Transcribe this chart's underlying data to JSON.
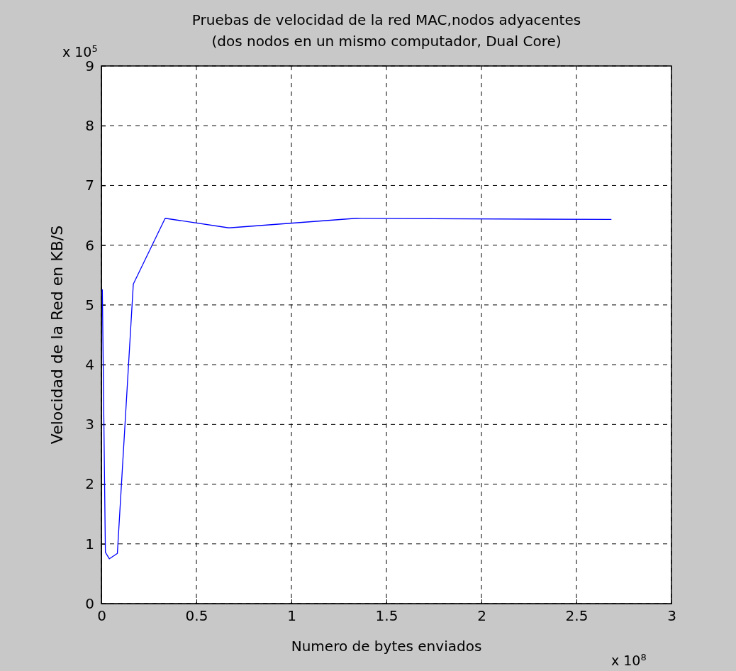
{
  "chart_data": {
    "type": "line",
    "title": "Pruebas de velocidad de la red MAC,nodos adyacentes\n(dos nodos en un mismo computador, Dual Core)",
    "xlabel": "Numero de bytes enviados",
    "ylabel": "Velocidad de la Red en KB/S",
    "annotations": [
      "x 10$^{5}$",
      "x 10$^{8}$"
    ],
    "x": [
      0.005,
      0.021,
      0.042,
      0.084,
      0.168,
      0.3355,
      0.671,
      1.342,
      2.684
    ],
    "series": [
      {
        "color": "#0000ff",
        "values": [
          5.26,
          0.86,
          0.75,
          0.84,
          5.35,
          6.45,
          6.29,
          6.45,
          6.43
        ]
      }
    ],
    "xlim": [
      0,
      3
    ],
    "xticks": [
      0,
      0.5,
      1,
      1.5,
      2,
      2.5,
      3
    ],
    "ylim": [
      0,
      9
    ],
    "yticks": [
      0,
      1,
      2,
      3,
      4,
      5,
      6,
      7,
      8,
      9
    ],
    "grid": true,
    "line_style": "solid",
    "marker": "none"
  }
}
